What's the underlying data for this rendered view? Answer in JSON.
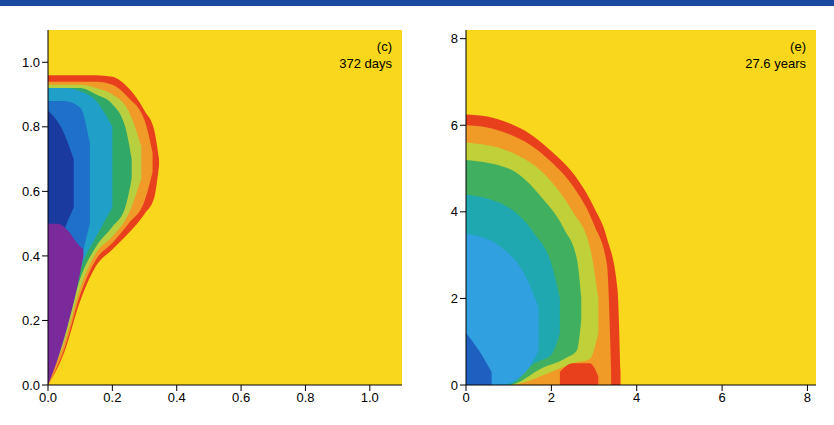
{
  "chart_data": [
    {
      "type": "area",
      "title": "(c)",
      "annotation": "372 days",
      "color": "#f9d71c",
      "grid": false,
      "xlim": [
        0,
        1.1
      ],
      "ylim": [
        0,
        1.1
      ],
      "xticks": [
        {
          "value": 0,
          "label": "0.0"
        },
        {
          "value": 0.2,
          "label": "0.2"
        },
        {
          "value": 0.4,
          "label": "0.4"
        },
        {
          "value": 0.6,
          "label": "0.6"
        },
        {
          "value": 0.8,
          "label": "0.8"
        },
        {
          "value": 1,
          "label": "1.0"
        }
      ],
      "yticks": [
        {
          "value": 0,
          "label": "0.0"
        },
        {
          "value": 0.2,
          "label": "0.2"
        },
        {
          "value": 0.4,
          "label": "0.4"
        },
        {
          "value": 0.6,
          "label": "0.6"
        },
        {
          "value": 0.8,
          "label": "0.8"
        },
        {
          "value": 1,
          "label": "1.0"
        }
      ],
      "series": [
        {
          "color": "#e8401c",
          "x": [
            0,
            0.05,
            0.1,
            0.15,
            0.2,
            0.25,
            0.3,
            0.33,
            0.345
          ],
          "values": [
            [
              0,
              0.96
            ],
            [
              0.1,
              0.96
            ],
            [
              0.26,
              0.96
            ],
            [
              0.37,
              0.96
            ],
            [
              0.42,
              0.955
            ],
            [
              0.47,
              0.92
            ],
            [
              0.53,
              0.85
            ],
            [
              0.58,
              0.79
            ],
            [
              0.68,
              0.7
            ]
          ]
        },
        {
          "color": "#f09a28",
          "x": [
            0,
            0.05,
            0.1,
            0.15,
            0.2,
            0.25,
            0.3,
            0.325
          ],
          "values": [
            [
              0,
              0.94
            ],
            [
              0.11,
              0.94
            ],
            [
              0.28,
              0.94
            ],
            [
              0.39,
              0.94
            ],
            [
              0.44,
              0.93
            ],
            [
              0.5,
              0.89
            ],
            [
              0.57,
              0.82
            ],
            [
              0.66,
              0.72
            ]
          ]
        },
        {
          "color": "#b8d040",
          "x": [
            0,
            0.05,
            0.1,
            0.15,
            0.2,
            0.25,
            0.29
          ],
          "values": [
            [
              0.02,
              0.93
            ],
            [
              0.13,
              0.93
            ],
            [
              0.3,
              0.93
            ],
            [
              0.41,
              0.92
            ],
            [
              0.46,
              0.9
            ],
            [
              0.53,
              0.85
            ],
            [
              0.64,
              0.74
            ]
          ]
        },
        {
          "color": "#30a868",
          "x": [
            0,
            0.05,
            0.1,
            0.15,
            0.2,
            0.24,
            0.26
          ],
          "values": [
            [
              0.03,
              0.92
            ],
            [
              0.15,
              0.92
            ],
            [
              0.33,
              0.92
            ],
            [
              0.43,
              0.9
            ],
            [
              0.49,
              0.87
            ],
            [
              0.55,
              0.8
            ],
            [
              0.64,
              0.7
            ]
          ]
        },
        {
          "color": "#20a0c8",
          "x": [
            0,
            0.05,
            0.1,
            0.15,
            0.2
          ],
          "values": [
            [
              0.04,
              0.92
            ],
            [
              0.17,
              0.92
            ],
            [
              0.36,
              0.91
            ],
            [
              0.46,
              0.88
            ],
            [
              0.55,
              0.8
            ]
          ]
        },
        {
          "color": "#1e70c8",
          "x": [
            0,
            0.05,
            0.1,
            0.13
          ],
          "values": [
            [
              0.05,
              0.88
            ],
            [
              0.2,
              0.88
            ],
            [
              0.38,
              0.86
            ],
            [
              0.5,
              0.75
            ]
          ]
        },
        {
          "color": "#1a3aa0",
          "x": [
            0,
            0.04,
            0.08
          ],
          "values": [
            [
              0.3,
              0.85
            ],
            [
              0.45,
              0.8
            ],
            [
              0.55,
              0.7
            ]
          ]
        },
        {
          "color": "#7a2a9a",
          "x": [
            0,
            0.03,
            0.06,
            0.09,
            0.11
          ],
          "values": [
            [
              0,
              0.5
            ],
            [
              0.08,
              0.5
            ],
            [
              0.18,
              0.48
            ],
            [
              0.3,
              0.44
            ],
            [
              0.4,
              0.42
            ]
          ]
        }
      ]
    },
    {
      "type": "area",
      "title": "(e)",
      "annotation": "27.6 years",
      "color": "#f9d71c",
      "grid": false,
      "xlim": [
        0,
        8.2
      ],
      "ylim": [
        0,
        8.2
      ],
      "xticks": [
        0,
        2,
        4,
        6,
        8
      ],
      "yticks": [
        0,
        2,
        4,
        6,
        8
      ],
      "series": [
        {
          "color": "#e8401c",
          "x": [
            0,
            0.5,
            1,
            1.5,
            2,
            2.5,
            3,
            3.3,
            3.55,
            3.62
          ],
          "values": [
            [
              0,
              6.25
            ],
            [
              0,
              6.2
            ],
            [
              0,
              6.05
            ],
            [
              0,
              5.8
            ],
            [
              0,
              5.4
            ],
            [
              0,
              4.9
            ],
            [
              0,
              4.1
            ],
            [
              0,
              3.4
            ],
            [
              0,
              2.2
            ],
            [
              0,
              0.3
            ]
          ]
        },
        {
          "color": "#f09a28",
          "x": [
            0,
            0.5,
            1,
            1.5,
            2,
            2.5,
            3,
            3.3,
            3.4
          ],
          "values": [
            [
              0,
              6.0
            ],
            [
              0,
              5.95
            ],
            [
              0,
              5.8
            ],
            [
              0,
              5.55
            ],
            [
              0,
              5.15
            ],
            [
              0,
              4.6
            ],
            [
              0,
              3.7
            ],
            [
              0,
              2.8
            ],
            [
              0,
              0.3
            ]
          ]
        },
        {
          "color": "#c0d038",
          "x": [
            0,
            1,
            2,
            2.5,
            2.9,
            3.1
          ],
          "values": [
            [
              0,
              5.6
            ],
            [
              0,
              5.4
            ],
            [
              0.3,
              4.7
            ],
            [
              0.5,
              4.0
            ],
            [
              0.6,
              3.2
            ],
            [
              1.2,
              2.0
            ]
          ]
        },
        {
          "color": "#40b060",
          "x": [
            0,
            1,
            1.8,
            2.3,
            2.6,
            2.7
          ],
          "values": [
            [
              0,
              5.2
            ],
            [
              0,
              5.0
            ],
            [
              0.4,
              4.3
            ],
            [
              0.6,
              3.6
            ],
            [
              0.8,
              2.9
            ],
            [
              1.5,
              2.0
            ]
          ]
        },
        {
          "color": "#20a8b0",
          "x": [
            0,
            1,
            1.6,
            2.0,
            2.2
          ],
          "values": [
            [
              0,
              4.4
            ],
            [
              0,
              4.1
            ],
            [
              0.5,
              3.5
            ],
            [
              0.7,
              2.8
            ],
            [
              1.2,
              2.0
            ]
          ]
        },
        {
          "color": "#30a0e0",
          "x": [
            0,
            0.8,
            1.4,
            1.7
          ],
          "values": [
            [
              0,
              3.5
            ],
            [
              0,
              3.2
            ],
            [
              0.3,
              2.5
            ],
            [
              0.8,
              1.8
            ]
          ]
        },
        {
          "color": "#1e60c0",
          "x": [
            0,
            0.3,
            0.6
          ],
          "values": [
            [
              0,
              1.2
            ],
            [
              0,
              0.8
            ],
            [
              0,
              0.3
            ]
          ]
        },
        {
          "color": "#e8401c",
          "x": [
            2.2,
            2.5,
            2.9,
            3.1
          ],
          "values": [
            [
              0,
              0.3
            ],
            [
              0,
              0.5
            ],
            [
              0,
              0.5
            ],
            [
              0,
              0.2
            ]
          ]
        }
      ]
    }
  ]
}
